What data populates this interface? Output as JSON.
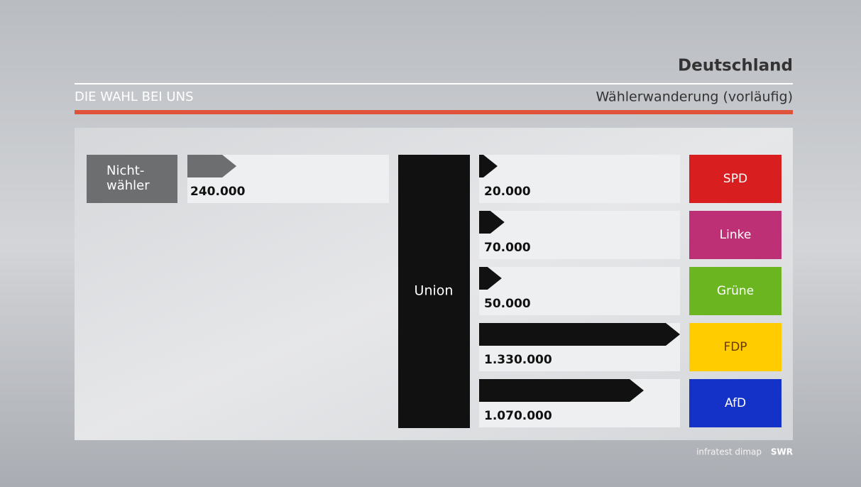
{
  "chart_data": {
    "type": "bar",
    "title": "Deutschland",
    "program": "DIE WAHL BEI UNS",
    "subtitle": "Wählerwanderung (vorläufig)",
    "party": "Union",
    "nonvoters": {
      "label": [
        "Nicht-",
        "wähler"
      ],
      "value": 240000,
      "value_label": "240.000",
      "color": "#6d6e70"
    },
    "categories": [
      "SPD",
      "Linke",
      "Grüne",
      "FDP",
      "AfD"
    ],
    "values": [
      20000,
      70000,
      50000,
      1330000,
      1070000
    ],
    "value_labels": [
      "20.000",
      "70.000",
      "50.000",
      "1.330.000",
      "1.070.000"
    ],
    "colors": [
      "#d81e1e",
      "#be3075",
      "#6ab520",
      "#ffcc00",
      "#1432c8"
    ],
    "bar_color": "#111111",
    "credits": [
      "infratest dimap",
      "SWR"
    ]
  }
}
